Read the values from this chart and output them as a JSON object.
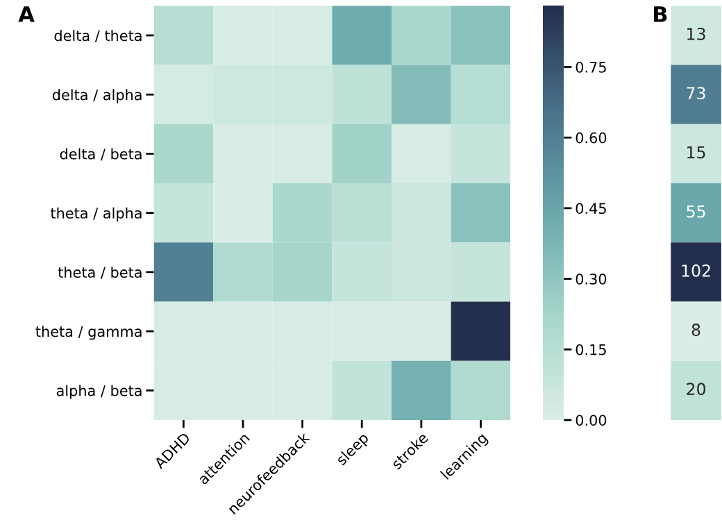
{
  "chart_data": [
    {
      "type": "heatmap",
      "title": "A",
      "categories": [
        "ADHD",
        "attention",
        "neurofeedback",
        "sleep",
        "stroke",
        "learning"
      ],
      "y_categories": [
        "delta / theta",
        "delta / alpha",
        "delta / beta",
        "theta / alpha",
        "theta / beta",
        "theta / gamma",
        "alpha / beta"
      ],
      "cells": [
        [
          0.15,
          0.02,
          0.02,
          0.42,
          0.2,
          0.32
        ],
        [
          0.03,
          0.06,
          0.06,
          0.12,
          0.35,
          0.16
        ],
        [
          0.2,
          0.02,
          0.02,
          0.24,
          0.02,
          0.09
        ],
        [
          0.09,
          0.0,
          0.2,
          0.14,
          0.07,
          0.32
        ],
        [
          0.6,
          0.18,
          0.22,
          0.09,
          0.07,
          0.09
        ],
        [
          0.02,
          0.02,
          0.02,
          0.02,
          0.02,
          0.88
        ],
        [
          0.02,
          0.02,
          0.02,
          0.1,
          0.4,
          0.18
        ]
      ],
      "clim": [
        0,
        0.88
      ],
      "cticks": [
        {
          "value": 0,
          "label": "0.00"
        },
        {
          "value": 0.15,
          "label": "0.15"
        },
        {
          "value": 0.3,
          "label": "0.30"
        },
        {
          "value": 0.45,
          "label": "0.45"
        },
        {
          "value": 0.6,
          "label": "0.60"
        },
        {
          "value": 0.75,
          "label": "0.75"
        }
      ]
    },
    {
      "type": "heatmap",
      "title": "B",
      "categories": [
        null
      ],
      "y_categories": [
        null,
        null,
        null,
        null,
        null,
        null,
        null
      ],
      "cells": [
        [
          13
        ],
        [
          73
        ],
        [
          15
        ],
        [
          55
        ],
        [
          102
        ],
        [
          8
        ],
        [
          20
        ]
      ],
      "data_labels": true,
      "tick_labels": false
    }
  ]
}
